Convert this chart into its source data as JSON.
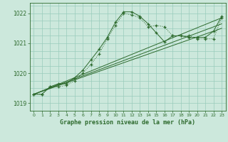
{
  "bg_color": "#cce8dc",
  "grid_color": "#99ccbb",
  "line_color": "#2d6a2d",
  "text_color": "#2d6a2d",
  "xlabel": "Graphe pression niveau de la mer (hPa)",
  "ylim": [
    1018.75,
    1022.35
  ],
  "xlim": [
    -0.5,
    23.5
  ],
  "yticks": [
    1019,
    1020,
    1021,
    1022
  ],
  "xtick_labels": [
    "0",
    "1",
    "2",
    "3",
    "4",
    "5",
    "6",
    "7",
    "8",
    "9",
    "10",
    "11",
    "12",
    "13",
    "14",
    "15",
    "16",
    "17",
    "18",
    "19",
    "20",
    "21",
    "22",
    "23"
  ],
  "series_main": {
    "x": [
      0,
      1,
      2,
      3,
      4,
      5,
      6,
      7,
      8,
      9,
      10,
      11,
      12,
      13,
      14,
      15,
      16,
      17,
      18,
      19,
      20,
      21,
      22,
      23
    ],
    "y": [
      1019.3,
      1019.3,
      1019.55,
      1019.55,
      1019.6,
      1019.75,
      1020.0,
      1020.3,
      1020.65,
      1021.15,
      1021.6,
      1022.0,
      1021.95,
      1021.85,
      1021.55,
      1021.6,
      1021.55,
      1021.25,
      1021.25,
      1021.25,
      1021.15,
      1021.15,
      1021.15,
      1021.85
    ]
  },
  "series_dotted": {
    "x": [
      0,
      1,
      2,
      3,
      4,
      5,
      6,
      7,
      8,
      9,
      10,
      11,
      12,
      13,
      14,
      15,
      16,
      17,
      18,
      19,
      20,
      21,
      22,
      23
    ],
    "y": [
      1019.3,
      1019.3,
      1019.55,
      1019.65,
      1019.65,
      1019.85,
      1020.1,
      1020.45,
      1020.8,
      1021.2,
      1021.7,
      1022.05,
      1022.05,
      1021.9,
      1021.65,
      1021.35,
      1021.05,
      1021.25,
      1021.25,
      1021.2,
      1021.2,
      1021.2,
      1021.4,
      1021.9
    ]
  },
  "series_linear1": {
    "x": [
      0,
      23
    ],
    "y": [
      1019.3,
      1021.85
    ]
  },
  "series_linear2": {
    "x": [
      0,
      23
    ],
    "y": [
      1019.3,
      1021.65
    ]
  },
  "series_linear3": {
    "x": [
      0,
      23
    ],
    "y": [
      1019.3,
      1021.5
    ]
  }
}
